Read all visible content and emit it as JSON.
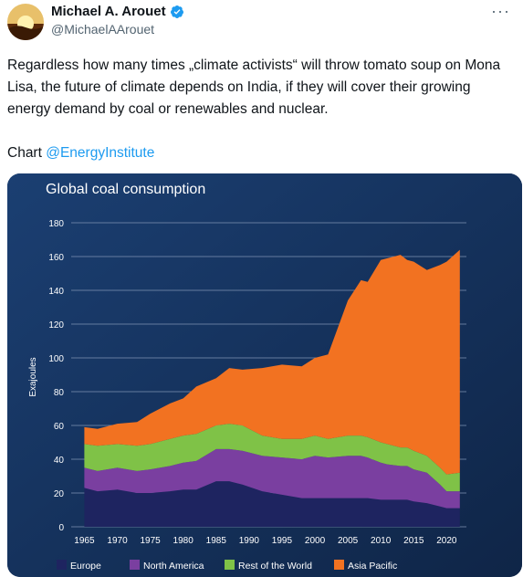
{
  "author": {
    "name": "Michael A. Arouet",
    "handle": "@MichaelAArouet",
    "verified_icon": "verified-badge-icon",
    "avatar_icon": "sunset-avatar-icon"
  },
  "more_label": "···",
  "tweet": {
    "paragraph1": "Regardless how many times „climate activists“ will throw tomato soup on Mona Lisa, the future of climate depends on India, if they will cover their growing energy demand by coal or renewables and nuclear.",
    "chart_prefix": "Chart ",
    "mention": "@EnergyInstitute"
  },
  "colors": {
    "card_bg": "#14315a",
    "europe": "#1e2460",
    "north_america": "#7a3fa0",
    "rest_of_world": "#7fc247",
    "asia_pacific": "#f27221",
    "link": "#1d9bf0"
  },
  "chart_data": {
    "type": "area",
    "stacked": true,
    "title": "Global coal consumption",
    "ylabel": "Exajoules",
    "xlabel": "",
    "ylim": [
      0,
      180
    ],
    "yticks": [
      0,
      20,
      40,
      60,
      80,
      100,
      120,
      140,
      160,
      180
    ],
    "xticks": [
      "1965",
      "1970",
      "1975",
      "1980",
      "1985",
      "1990",
      "1995",
      "2000",
      "2005",
      "2010",
      "2015",
      "2020"
    ],
    "grid": true,
    "legend_position": "bottom",
    "x": [
      1965,
      1967,
      1970,
      1973,
      1975,
      1978,
      1980,
      1982,
      1985,
      1987,
      1989,
      1992,
      1995,
      1998,
      2000,
      2002,
      2005,
      2007,
      2008,
      2010,
      2011,
      2013,
      2014,
      2015,
      2017,
      2019,
      2020,
      2022
    ],
    "series": [
      {
        "name": "Europe",
        "values": [
          23,
          21,
          22,
          20,
          20,
          21,
          22,
          22,
          27,
          27,
          25,
          21,
          19,
          17,
          17,
          17,
          17,
          17,
          17,
          16,
          16,
          16,
          16,
          15,
          14,
          12,
          11,
          11
        ]
      },
      {
        "name": "North America",
        "values": [
          12,
          12,
          13,
          13,
          14,
          15,
          16,
          17,
          19,
          19,
          20,
          21,
          22,
          23,
          25,
          24,
          25,
          25,
          24,
          22,
          21,
          20,
          20,
          19,
          18,
          13,
          10,
          10
        ]
      },
      {
        "name": "Rest of the World",
        "values": [
          14,
          15,
          14,
          15,
          15,
          16,
          16,
          16,
          14,
          15,
          15,
          12,
          11,
          12,
          12,
          11,
          12,
          12,
          12,
          12,
          12,
          11,
          11,
          11,
          10,
          10,
          10,
          11
        ]
      },
      {
        "name": "Asia Pacific",
        "values": [
          10,
          10,
          12,
          14,
          18,
          21,
          22,
          28,
          28,
          33,
          33,
          40,
          44,
          43,
          46,
          50,
          80,
          92,
          92,
          108,
          110,
          114,
          111,
          112,
          110,
          120,
          126,
          132
        ]
      }
    ]
  }
}
